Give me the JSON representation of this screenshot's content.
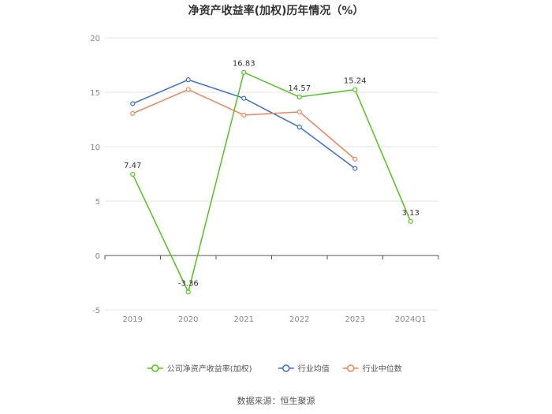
{
  "chart_data": {
    "type": "line",
    "title": "净资产收益率(加权)历年情况（%）",
    "categories": [
      "2019",
      "2020",
      "2021",
      "2022",
      "2023",
      "2024Q1"
    ],
    "ylim": [
      -5,
      20
    ],
    "yticks": [
      20,
      15,
      10,
      5,
      0,
      -5
    ],
    "grid": true,
    "legend_position": "bottom",
    "series": [
      {
        "name": "公司净资产收益率(加权)",
        "color": "#52c41a",
        "values": [
          7.47,
          -3.36,
          16.83,
          14.57,
          15.24,
          3.13
        ],
        "labels": [
          "7.47",
          "-3.36",
          "16.83",
          "14.57",
          "15.24",
          "3.13"
        ]
      },
      {
        "name": "行业均值",
        "color": "#3b6fd4",
        "values": [
          13.95,
          16.15,
          14.45,
          11.8,
          8.0,
          null
        ]
      },
      {
        "name": "行业中位数",
        "color": "#f0845a",
        "values": [
          13.05,
          15.25,
          12.9,
          13.2,
          8.85,
          null
        ]
      }
    ],
    "source": "数据来源：恒生聚源"
  }
}
